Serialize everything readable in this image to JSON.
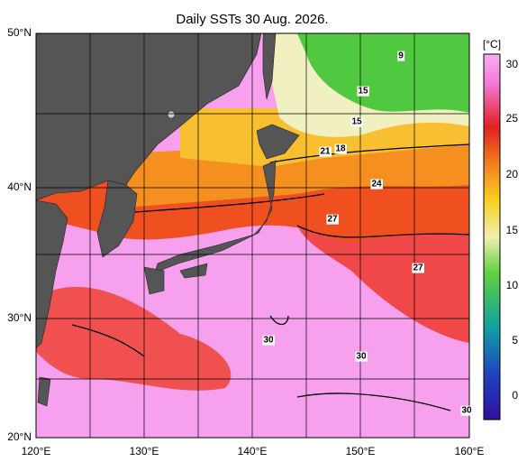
{
  "title": "Daily SSTs 30 Aug. 2026.",
  "lat_labels": [
    "50°N",
    "40°N",
    "30°N",
    "20°N"
  ],
  "lon_labels": [
    "120°E",
    "130°E",
    "140°E",
    "150°E",
    "160°E"
  ],
  "colorbar": {
    "unit": "[°C]",
    "ticks": [
      "30",
      "25",
      "20",
      "15",
      "10",
      "5",
      "0"
    ]
  },
  "contour_labels": [
    "9",
    "15",
    "15",
    "21",
    "18",
    "24",
    "27",
    "27",
    "30",
    "30",
    "30"
  ]
}
